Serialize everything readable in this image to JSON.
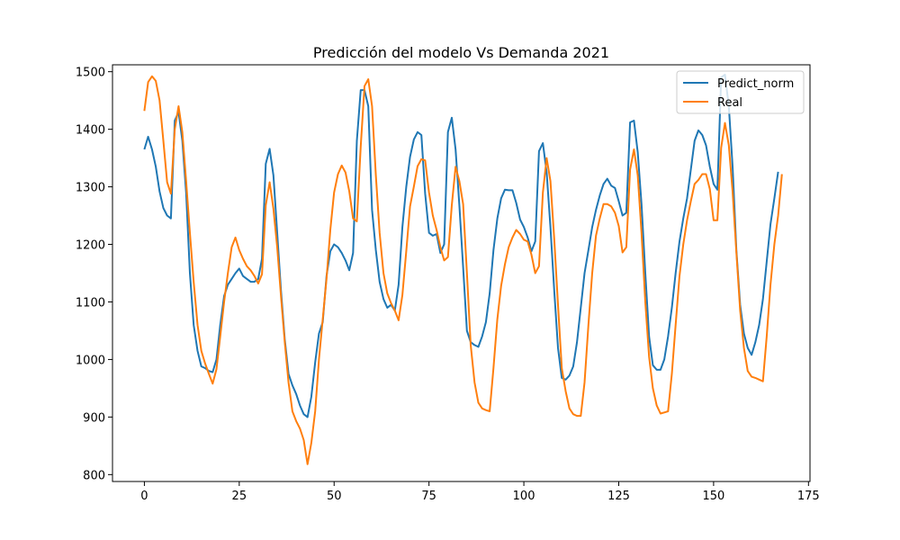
{
  "chart_data": {
    "type": "line",
    "title": "Predicción del modelo Vs Demanda 2021",
    "xlabel": "",
    "ylabel": "",
    "xlim": [
      -8.4,
      175.4
    ],
    "ylim": [
      788,
      1512
    ],
    "xticks": [
      0,
      25,
      50,
      75,
      100,
      125,
      150,
      175
    ],
    "yticks": [
      800,
      900,
      1000,
      1100,
      1200,
      1300,
      1400,
      1500
    ],
    "grid": false,
    "legend": "top-right",
    "series": [
      {
        "name": "Predict_norm",
        "color": "#1f77b4",
        "values": [
          1365,
          1387,
          1365,
          1335,
          1292,
          1263,
          1250,
          1245,
          1415,
          1430,
          1380,
          1290,
          1150,
          1060,
          1015,
          988,
          985,
          980,
          978,
          1000,
          1060,
          1110,
          1130,
          1140,
          1150,
          1158,
          1145,
          1140,
          1135,
          1135,
          1140,
          1175,
          1340,
          1366,
          1320,
          1220,
          1120,
          1035,
          975,
          955,
          940,
          920,
          905,
          900,
          935,
          995,
          1045,
          1065,
          1145,
          1188,
          1200,
          1195,
          1185,
          1172,
          1155,
          1185,
          1380,
          1468,
          1468,
          1440,
          1260,
          1190,
          1135,
          1105,
          1090,
          1095,
          1085,
          1130,
          1230,
          1300,
          1352,
          1382,
          1395,
          1390,
          1288,
          1220,
          1215,
          1218,
          1185,
          1200,
          1395,
          1420,
          1365,
          1268,
          1160,
          1050,
          1030,
          1025,
          1022,
          1040,
          1065,
          1115,
          1190,
          1245,
          1280,
          1295,
          1294,
          1294,
          1272,
          1243,
          1230,
          1212,
          1188,
          1205,
          1362,
          1376,
          1325,
          1230,
          1120,
          1020,
          968,
          965,
          972,
          988,
          1030,
          1090,
          1150,
          1190,
          1230,
          1260,
          1285,
          1305,
          1314,
          1302,
          1298,
          1275,
          1250,
          1255,
          1412,
          1415,
          1360,
          1270,
          1150,
          1040,
          990,
          982,
          982,
          1000,
          1040,
          1090,
          1150,
          1205,
          1245,
          1280,
          1330,
          1380,
          1398,
          1390,
          1372,
          1335,
          1305,
          1295,
          1490,
          1495,
          1440,
          1335,
          1190,
          1095,
          1045,
          1020,
          1008,
          1030,
          1060,
          1105,
          1170,
          1235,
          1280,
          1326
        ]
      },
      {
        "name": "Real",
        "color": "#ff7f0e",
        "values": [
          1432,
          1482,
          1492,
          1484,
          1450,
          1380,
          1308,
          1288,
          1400,
          1440,
          1395,
          1310,
          1220,
          1135,
          1060,
          1015,
          993,
          975,
          958,
          983,
          1040,
          1100,
          1150,
          1195,
          1212,
          1190,
          1175,
          1162,
          1155,
          1145,
          1132,
          1148,
          1268,
          1308,
          1262,
          1195,
          1110,
          1030,
          960,
          910,
          893,
          880,
          860,
          818,
          855,
          910,
          1000,
          1070,
          1140,
          1225,
          1290,
          1322,
          1337,
          1325,
          1292,
          1245,
          1240,
          1370,
          1475,
          1487,
          1440,
          1320,
          1220,
          1150,
          1115,
          1098,
          1085,
          1068,
          1112,
          1188,
          1266,
          1300,
          1336,
          1348,
          1346,
          1290,
          1250,
          1225,
          1195,
          1172,
          1178,
          1268,
          1335,
          1310,
          1270,
          1150,
          1025,
          960,
          925,
          915,
          912,
          910,
          985,
          1070,
          1128,
          1165,
          1195,
          1212,
          1225,
          1218,
          1208,
          1205,
          1182,
          1150,
          1162,
          1290,
          1350,
          1310,
          1210,
          1095,
          985,
          945,
          915,
          905,
          902,
          902,
          960,
          1060,
          1150,
          1215,
          1245,
          1270,
          1270,
          1266,
          1255,
          1232,
          1186,
          1195,
          1330,
          1365,
          1320,
          1220,
          1100,
          1005,
          950,
          920,
          906,
          908,
          910,
          975,
          1060,
          1145,
          1200,
          1242,
          1275,
          1305,
          1312,
          1322,
          1322,
          1296,
          1242,
          1242,
          1368,
          1411,
          1372,
          1292,
          1186,
          1085,
          1020,
          980,
          970,
          968,
          965,
          962,
          1040,
          1130,
          1200,
          1250,
          1322
        ]
      }
    ]
  }
}
